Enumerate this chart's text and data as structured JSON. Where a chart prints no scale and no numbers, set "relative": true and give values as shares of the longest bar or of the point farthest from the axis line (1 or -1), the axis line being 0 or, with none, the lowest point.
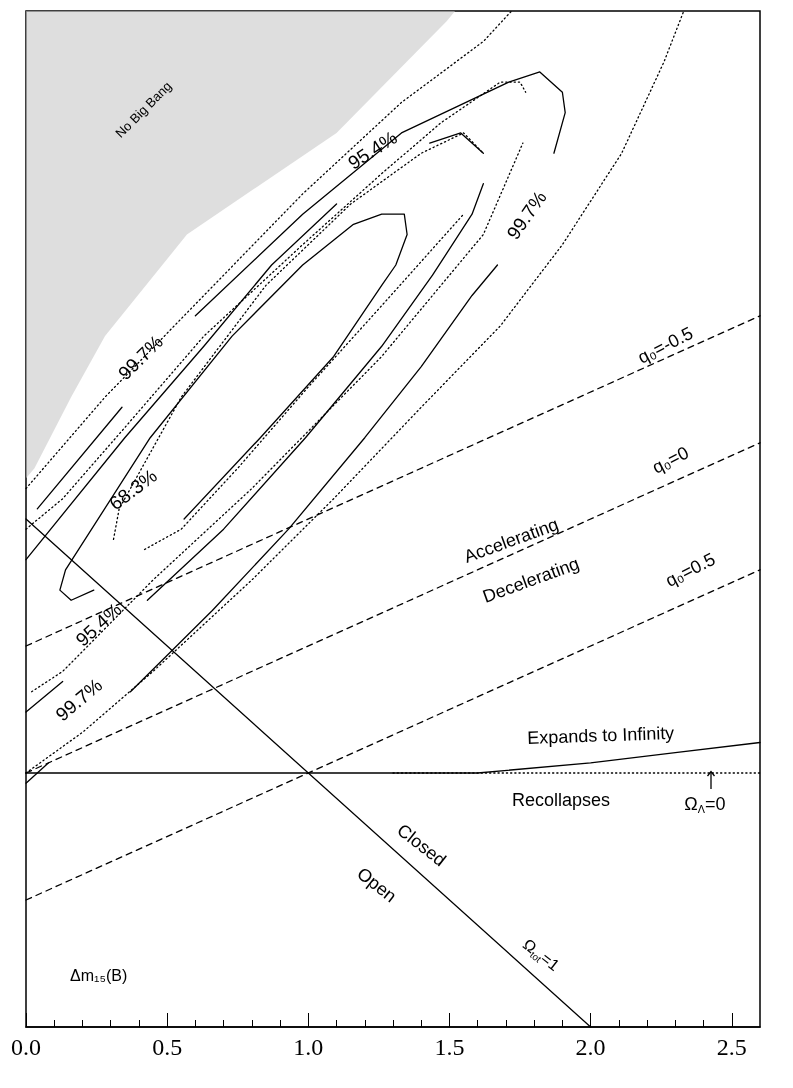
{
  "chart_data": {
    "type": "line",
    "relative": true,
    "marker": "none",
    "xlim": [
      0,
      2.6
    ],
    "xticks": [
      {
        "value": 0,
        "label": "0.0"
      },
      0.5,
      {
        "value": 1,
        "label": "1.0"
      },
      1.5,
      {
        "value": 2,
        "label": "2.0"
      },
      2.5
    ],
    "series": [
      {
        "type": "area",
        "color": "#c8c8c8",
        "x": [
          0,
          0,
          0.03,
          0.16,
          0.28,
          0.57,
          1.1,
          1.49,
          1.52
        ],
        "values": [
          1.0,
          0.54,
          0.55,
          0.62,
          0.68,
          0.78,
          0.88,
          0.99,
          1.0
        ]
      },
      {
        "color": "#000000",
        "line_style": "solid",
        "x": [
          0.24,
          0.16,
          0.12,
          0.14,
          0.44,
          0.73,
          0.98,
          1.16,
          1.26,
          1.34,
          1.35,
          1.31,
          1.26,
          1.09,
          0.83,
          0.56
        ],
        "values": [
          0.43,
          0.42,
          0.43,
          0.45,
          0.58,
          0.68,
          0.75,
          0.79,
          0.8,
          0.8,
          0.78,
          0.75,
          0.73,
          0.66,
          0.58,
          0.5
        ]
      },
      {
        "color": "#000000",
        "line_style": "solid",
        "x": [
          0,
          0.13,
          0.28,
          0.43,
          0.7,
          0.99,
          1.26,
          1.44,
          1.58,
          1.62
        ],
        "values": [
          0.31,
          0.34,
          null,
          0.42,
          0.49,
          0.58,
          0.67,
          0.74,
          0.8,
          0.83
        ]
      },
      {
        "color": "#000000",
        "line_style": "solid",
        "x": [
          0,
          0.35,
          0.63,
          0.87,
          1.1,
          1.27,
          1.43,
          1.54,
          1.62
        ],
        "values": [
          0.46,
          0.58,
          0.67,
          0.75,
          0.81,
          null,
          0.87,
          0.88,
          0.86
        ]
      },
      {
        "color": "#000000",
        "line_style": "solid",
        "x": [
          0,
          0.08,
          0.22,
          0.37,
          0.66,
          0.93,
          1.2,
          1.4,
          1.58,
          1.67,
          1.77,
          1.87,
          1.91,
          1.9,
          1.82,
          1.71,
          1.33,
          0.98,
          0.6,
          0.47,
          0.34,
          0.04
        ],
        "values": [
          0.24,
          0.26,
          null,
          0.33,
          0.41,
          0.49,
          0.58,
          0.65,
          0.72,
          0.75,
          null,
          0.86,
          0.9,
          0.92,
          0.94,
          0.93,
          0.88,
          0.8,
          0.7,
          null,
          0.61,
          0.51
        ]
      },
      {
        "color": "#000000",
        "line_style": "dotted",
        "x": [
          0.31,
          0.33,
          0.55,
          0.85,
          1.15,
          1.4,
          1.55,
          1.62
        ],
        "values": [
          0.48,
          0.51,
          0.62,
          0.73,
          0.81,
          0.86,
          0.88,
          0.86
        ]
      },
      {
        "color": "#000000",
        "line_style": "dotted",
        "x": [
          0.42,
          0.55,
          0.75,
          1.0,
          1.26,
          1.55
        ],
        "values": [
          0.47,
          0.49,
          0.55,
          0.63,
          0.71,
          0.8
        ]
      },
      {
        "color": "#000000",
        "line_style": "dotted",
        "x": [
          0.02,
          0.13,
          0.45,
          0.8,
          1.26,
          1.62,
          1.76
        ],
        "values": [
          0.33,
          0.35,
          0.44,
          0.53,
          0.66,
          0.78,
          0.87
        ]
      },
      {
        "color": "#000000",
        "line_style": "dotted",
        "x": [
          0,
          0.13,
          0.35,
          0.63,
          0.98,
          1.26,
          1.47,
          1.68,
          1.75,
          1.77
        ],
        "values": [
          0.49,
          0.52,
          0.59,
          0.68,
          0.77,
          0.84,
          0.89,
          0.93,
          0.93,
          0.92
        ]
      },
      {
        "color": "#000000",
        "line_style": "dotted",
        "x": [
          0,
          0.28,
          0.63,
          0.98,
          1.33,
          1.62,
          1.72
        ],
        "values": [
          0.53,
          0.62,
          0.72,
          0.82,
          0.91,
          0.97,
          1.0
        ]
      },
      {
        "color": "#000000",
        "line_style": "dotted",
        "x": [
          0,
          0.2,
          0.45,
          0.8,
          1.09,
          1.4,
          1.68,
          1.9,
          2.11,
          2.26,
          2.33
        ],
        "values": [
          0.25,
          0.29,
          0.35,
          0.44,
          0.52,
          0.61,
          0.69,
          0.77,
          0.86,
          0.95,
          1.0
        ]
      },
      {
        "color": "#000000",
        "line_style": "dashed",
        "x": [
          0,
          2.6
        ],
        "values": [
          0.375,
          0.7
        ]
      },
      {
        "color": "#000000",
        "line_style": "dashed",
        "x": [
          0,
          2.6
        ],
        "values": [
          0.25,
          0.575
        ]
      },
      {
        "color": "#000000",
        "line_style": "dashed",
        "x": [
          0,
          2.6
        ],
        "values": [
          0.125,
          0.45
        ]
      },
      {
        "color": "#000000",
        "line_style": "solid",
        "x": [
          0,
          1.0,
          1.3,
          1.6,
          2.0,
          2.3,
          2.6
        ],
        "values": [
          0.25,
          0.25,
          0.25,
          0.25,
          0.26,
          0.27,
          0.28
        ]
      },
      {
        "color": "#000000",
        "line_style": "dotted",
        "x": [
          1.3,
          2.6
        ],
        "values": [
          0.25,
          0.25
        ]
      },
      {
        "color": "#000000",
        "line_style": "solid",
        "x": [
          0,
          2
        ],
        "values": [
          0.5,
          0
        ]
      }
    ],
    "annotations": [
      "No Big Bang",
      "99.7%",
      "95.4%",
      "99.7%",
      "68.3%",
      "95.4%",
      "99.7%",
      "q₀=-0.5",
      "q₀=0",
      "Accelerating",
      "Decelerating",
      "q₀=0.5",
      "Expands to Infinity",
      "Recollapses",
      "Ω$_{Λ}$=0",
      "Closed",
      "Open",
      "Ω$_{tot}$=1",
      "Δm₁₅(B)"
    ]
  }
}
